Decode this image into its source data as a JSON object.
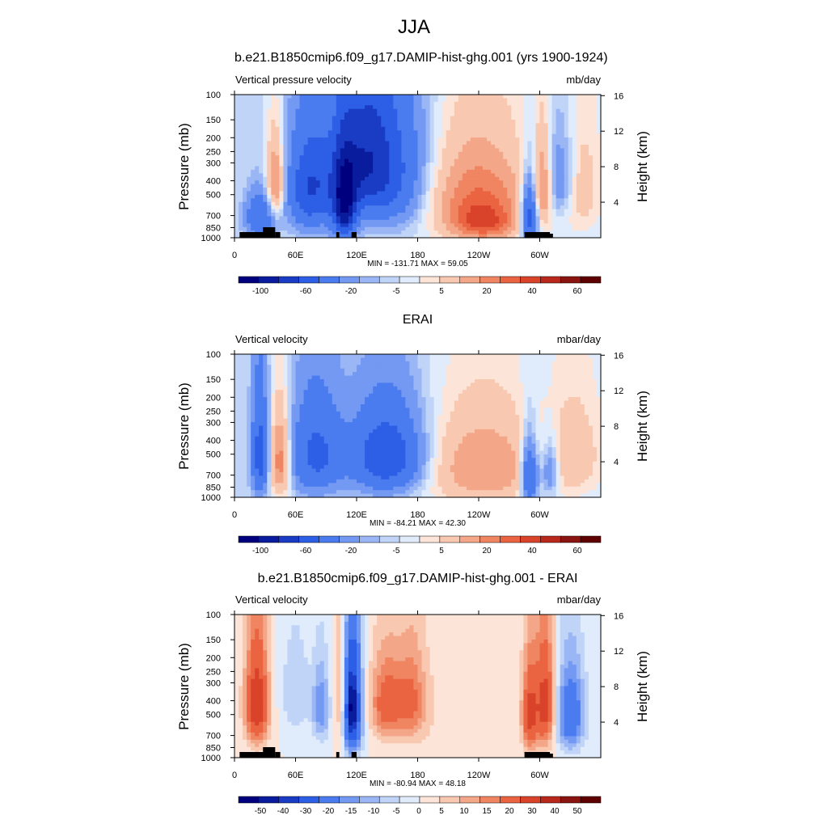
{
  "main_title": "JJA",
  "colors": {
    "palette": [
      "#00007f",
      "#0a1c9e",
      "#1a3cc4",
      "#2d5ee6",
      "#4a7cf0",
      "#7399f3",
      "#9ab6f5",
      "#c0d4f8",
      "#e0ebfb",
      "#fce5d8",
      "#f8c8b0",
      "#f4a788",
      "#f08562",
      "#ea6442",
      "#d9432a",
      "#b8281c",
      "#8a1410",
      "#5e0000"
    ],
    "land": "#000000"
  },
  "chart_data": [
    {
      "type": "heatmap",
      "title": "b.e21.B1850cmip6.f09_g17.DAMIP-hist-ghg.001 (yrs 1900-1924)",
      "left_label": "Vertical pressure velocity",
      "right_label": "mb/day",
      "ylabel": "Pressure (mb)",
      "ylabel_right": "Height (km)",
      "x_ticks": [
        "0",
        "60E",
        "120E",
        "180",
        "120W",
        "60W"
      ],
      "y_ticks": [
        "100",
        "150",
        "200",
        "250",
        "300",
        "400",
        "500",
        "700",
        "850",
        "1000"
      ],
      "y_right_ticks": [
        "4",
        "8",
        "12",
        "16"
      ],
      "stats": "MIN = -131.71  MAX =  59.05",
      "min": -131.71,
      "max": 59.05,
      "colorbar_labels": [
        "-100",
        "-60",
        "-20",
        "-5",
        "5",
        "20",
        "40",
        "60"
      ]
    },
    {
      "type": "heatmap",
      "title": "ERAI",
      "left_label": "Vertical velocity",
      "right_label": "mbar/day",
      "ylabel": "Pressure (mb)",
      "ylabel_right": "Height (km)",
      "x_ticks": [
        "0",
        "60E",
        "120E",
        "180",
        "120W",
        "60W"
      ],
      "y_ticks": [
        "100",
        "150",
        "200",
        "250",
        "300",
        "400",
        "500",
        "700",
        "850",
        "1000"
      ],
      "y_right_ticks": [
        "4",
        "8",
        "12",
        "16"
      ],
      "stats": "MIN = -84.21  MAX =  42.30",
      "min": -84.21,
      "max": 42.3,
      "colorbar_labels": [
        "-100",
        "-60",
        "-20",
        "-5",
        "5",
        "20",
        "40",
        "60"
      ]
    },
    {
      "type": "heatmap",
      "title": "b.e21.B1850cmip6.f09_g17.DAMIP-hist-ghg.001 - ERAI",
      "left_label": "Vertical velocity",
      "right_label": "mbar/day",
      "ylabel": "Pressure (mb)",
      "ylabel_right": "Height (km)",
      "x_ticks": [
        "0",
        "60E",
        "120E",
        "180",
        "120W",
        "60W"
      ],
      "y_ticks": [
        "100",
        "150",
        "200",
        "250",
        "300",
        "400",
        "500",
        "700",
        "850",
        "1000"
      ],
      "y_right_ticks": [
        "4",
        "8",
        "12",
        "16"
      ],
      "stats": "MIN = -80.94  MAX =  48.18",
      "min": -80.94,
      "max": 48.18,
      "colorbar_labels": [
        "-50",
        "-40",
        "-30",
        "-20",
        "-15",
        "-10",
        "-5",
        "0",
        "5",
        "10",
        "15",
        "20",
        "30",
        "40",
        "50"
      ]
    }
  ]
}
